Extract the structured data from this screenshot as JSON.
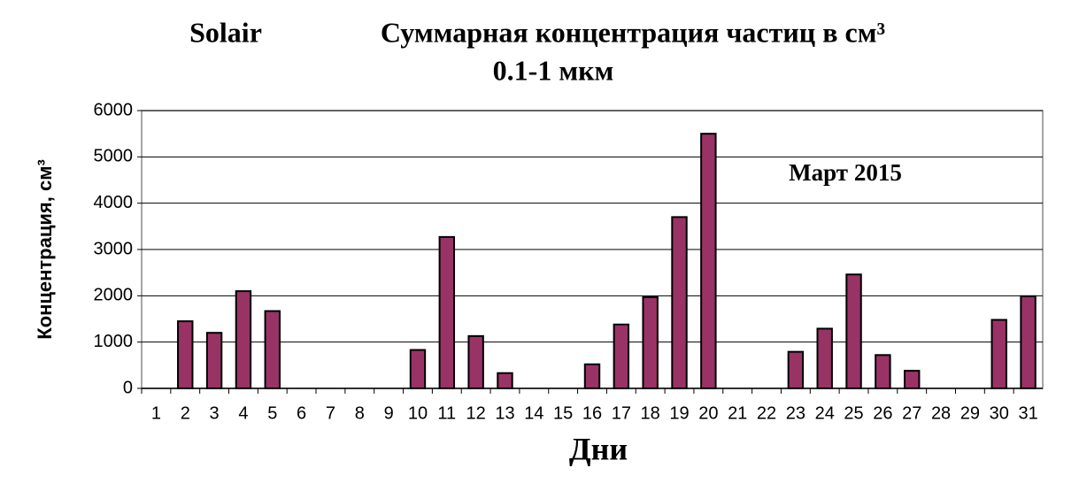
{
  "chart_data": {
    "type": "bar",
    "title": "Суммарная концентрация частиц  в см³",
    "title_prefix": "Solair",
    "subtitle": "0.1-1 мкм",
    "annotation": "Март 2015",
    "x_label": "Дни",
    "y_label": "Концентрация, см³",
    "categories": [
      "1",
      "2",
      "3",
      "4",
      "5",
      "6",
      "7",
      "8",
      "9",
      "10",
      "11",
      "12",
      "13",
      "14",
      "15",
      "16",
      "17",
      "18",
      "19",
      "20",
      "21",
      "22",
      "23",
      "24",
      "25",
      "26",
      "27",
      "28",
      "29",
      "30",
      "31"
    ],
    "values": [
      null,
      1450,
      1200,
      2100,
      1670,
      null,
      null,
      null,
      null,
      830,
      3270,
      1130,
      330,
      null,
      null,
      520,
      1380,
      1970,
      3700,
      5500,
      null,
      null,
      790,
      1290,
      2460,
      720,
      380,
      null,
      null,
      1480,
      1990
    ],
    "color": "#993366",
    "ylim": [
      0,
      6000
    ],
    "yticks": [
      0,
      1000,
      2000,
      3000,
      4000,
      5000,
      6000
    ],
    "grid": true
  }
}
